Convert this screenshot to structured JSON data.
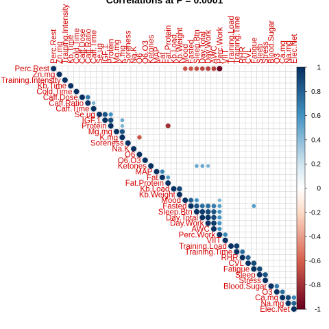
{
  "chart_data": {
    "type": "heatmap",
    "title": "Correlations at P = 0.0001",
    "variables": [
      "Perc.Rest",
      "Zn.mg",
      "Training.Intensity",
      "Kb.Time",
      "Cold.Time",
      "Caff.Dose",
      "Caff.Ratio",
      "Caff.Time",
      "Se.ug",
      "IGF.1",
      "Protein",
      "Mg.mg",
      "K.mg",
      "Soreness",
      "Na.K",
      "O6",
      "O6.O3",
      "Ketones",
      "MAP",
      "Fat",
      "Fat.Protein",
      "Kb.Load",
      "Kb.Weight",
      "Mood",
      "Fasted",
      "Sleep.Btn",
      "Day.Total",
      "Day.Work",
      "AWC",
      "Perc.Work",
      "VIIT",
      "Training.Load",
      "Training.Time",
      "RHR",
      "CVL",
      "Fatigue",
      "Sleep",
      "Stress",
      "Blood.Sugar",
      "O3",
      "Ca.mg",
      "Na.mg",
      "Elec.Net"
    ],
    "display": "upper triangle, circles",
    "colorbar": {
      "ticks": [
        1,
        0.8,
        0.6,
        0.4,
        0.2,
        0,
        -0.2,
        -0.4,
        -0.6,
        -0.8,
        -1
      ],
      "range": [
        -1,
        1
      ]
    },
    "correlations": [
      {
        "row": "Perc.Rest",
        "col": "Mood",
        "r": -0.65
      },
      {
        "row": "Perc.Rest",
        "col": "Fasted",
        "r": -0.65
      },
      {
        "row": "Perc.Rest",
        "col": "Sleep.Btn",
        "r": -0.68
      },
      {
        "row": "Perc.Rest",
        "col": "Day.Total",
        "r": -0.7
      },
      {
        "row": "Perc.Rest",
        "col": "Day.Work",
        "r": -0.72
      },
      {
        "row": "Perc.Rest",
        "col": "AWC",
        "r": -0.72
      },
      {
        "row": "Perc.Rest",
        "col": "Perc.Work",
        "r": -1.0
      },
      {
        "row": "Caff.Dose",
        "col": "Caff.Ratio",
        "r": 0.7
      },
      {
        "row": "Caff.Ratio",
        "col": "Caff.Time",
        "r": 0.45
      },
      {
        "row": "Se.ug",
        "col": "IGF.1",
        "r": 0.85
      },
      {
        "row": "Se.ug",
        "col": "Protein",
        "r": 0.6
      },
      {
        "row": "IGF.1",
        "col": "Protein",
        "r": 0.88
      },
      {
        "row": "IGF.1",
        "col": "K.mg",
        "r": 0.5
      },
      {
        "row": "Protein",
        "col": "K.mg",
        "r": 0.45
      },
      {
        "row": "Protein",
        "col": "Fat.Protein",
        "r": -0.8
      },
      {
        "row": "Mg.mg",
        "col": "K.mg",
        "r": 0.85
      },
      {
        "row": "K.mg",
        "col": "O6",
        "r": -0.65
      },
      {
        "row": "Ketones",
        "col": "Sleep.Btn",
        "r": 0.5
      },
      {
        "row": "Ketones",
        "col": "Day.Total",
        "r": 0.5
      },
      {
        "row": "Ketones",
        "col": "Day.Work",
        "r": 0.45
      },
      {
        "row": "MAP",
        "col": "Fat",
        "r": 0.65
      },
      {
        "row": "Fat",
        "col": "Fat.Protein",
        "r": 0.55
      },
      {
        "row": "Kb.Load",
        "col": "Kb.Weight",
        "r": 0.9
      },
      {
        "row": "Mood",
        "col": "Fasted",
        "r": 0.8
      },
      {
        "row": "Mood",
        "col": "Sleep.Btn",
        "r": 0.6
      },
      {
        "row": "Mood",
        "col": "Perc.Work",
        "r": 0.45
      },
      {
        "row": "Fasted",
        "col": "Sleep.Btn",
        "r": 0.85
      },
      {
        "row": "Fasted",
        "col": "Day.Total",
        "r": 0.75
      },
      {
        "row": "Fasted",
        "col": "Day.Work",
        "r": 0.75
      },
      {
        "row": "Fasted",
        "col": "AWC",
        "r": 0.7
      },
      {
        "row": "Fasted",
        "col": "Perc.Work",
        "r": 0.55
      },
      {
        "row": "Fasted",
        "col": "Fatigue",
        "r": 0.55
      },
      {
        "row": "Sleep.Btn",
        "col": "Day.Total",
        "r": 0.95
      },
      {
        "row": "Sleep.Btn",
        "col": "Day.Work",
        "r": 0.9
      },
      {
        "row": "Sleep.Btn",
        "col": "AWC",
        "r": 0.85
      },
      {
        "row": "Sleep.Btn",
        "col": "Perc.Work",
        "r": 0.6
      },
      {
        "row": "Day.Total",
        "col": "Day.Work",
        "r": 0.98
      },
      {
        "row": "Day.Total",
        "col": "AWC",
        "r": 0.9
      },
      {
        "row": "Day.Total",
        "col": "Perc.Work",
        "r": 0.6
      },
      {
        "row": "Day.Work",
        "col": "AWC",
        "r": 0.95
      },
      {
        "row": "Day.Work",
        "col": "Perc.Work",
        "r": 0.6
      },
      {
        "row": "AWC",
        "col": "Perc.Work",
        "r": 0.6
      },
      {
        "row": "Perc.Work",
        "col": "VIIT",
        "r": 0.65
      },
      {
        "row": "Training.Load",
        "col": "Training.Time",
        "r": 0.95
      },
      {
        "row": "Training.Time",
        "col": "RHR",
        "r": 0.75
      },
      {
        "row": "RHR",
        "col": "CVL",
        "r": 0.8
      },
      {
        "row": "CVL",
        "col": "Fatigue",
        "r": 0.9
      },
      {
        "row": "Fatigue",
        "col": "Sleep",
        "r": 0.9
      },
      {
        "row": "Sleep",
        "col": "Stress",
        "r": 0.85
      },
      {
        "row": "Blood.Sugar",
        "col": "O3",
        "r": 0.7
      },
      {
        "row": "O3",
        "col": "Ca.mg",
        "r": 0.75
      },
      {
        "row": "Ca.mg",
        "col": "Na.mg",
        "r": 0.9
      },
      {
        "row": "Ca.mg",
        "col": "Elec.Net",
        "r": 0.65
      },
      {
        "row": "Na.mg",
        "col": "Elec.Net",
        "r": 0.8
      }
    ]
  }
}
